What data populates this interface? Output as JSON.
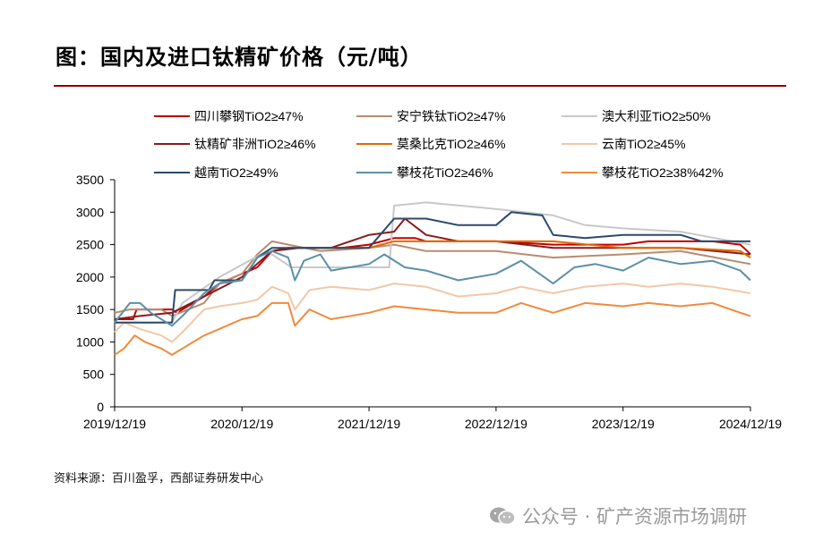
{
  "title": "图：国内及进口钛精矿价格（元/吨）",
  "source": "资料来源：百川盈孚，西部证券研发中心",
  "watermark": "公众号 · 矿产资源市场调研",
  "chart_data": {
    "type": "line",
    "x_ticks": [
      "2019/12/19",
      "2020/12/19",
      "2021/12/19",
      "2022/12/19",
      "2023/12/19",
      "2024/12/19"
    ],
    "xlim": [
      "2019/12/19",
      "2024/12/19"
    ],
    "ylim": [
      0,
      3500
    ],
    "y_ticks": [
      0,
      500,
      1000,
      1500,
      2000,
      2500,
      3000,
      3500
    ],
    "grid": false,
    "legend_position": "top",
    "series": [
      {
        "name": "四川攀钢TiO2≥47%",
        "color": "#c00000",
        "points": [
          [
            "2019-12-19",
            1350
          ],
          [
            "2020-02-10",
            1350
          ],
          [
            "2020-02-20",
            1500
          ],
          [
            "2020-06-01",
            1500
          ],
          [
            "2020-06-15",
            1450
          ],
          [
            "2020-09-01",
            1700
          ],
          [
            "2020-10-15",
            1900
          ],
          [
            "2020-12-19",
            2050
          ],
          [
            "2021-02-01",
            2150
          ],
          [
            "2021-03-15",
            2400
          ],
          [
            "2021-05-01",
            2450
          ],
          [
            "2021-08-01",
            2450
          ],
          [
            "2021-10-01",
            2450
          ],
          [
            "2021-12-19",
            2500
          ],
          [
            "2022-03-01",
            2600
          ],
          [
            "2022-05-01",
            2600
          ],
          [
            "2022-06-01",
            2550
          ],
          [
            "2022-12-19",
            2550
          ],
          [
            "2023-06-01",
            2500
          ],
          [
            "2023-12-19",
            2500
          ],
          [
            "2024-03-01",
            2550
          ],
          [
            "2024-09-01",
            2550
          ],
          [
            "2024-11-20",
            2500
          ],
          [
            "2024-12-10",
            2400
          ],
          [
            "2024-12-19",
            2350
          ]
        ]
      },
      {
        "name": "安宁铁钛TiO2≥47%",
        "color": "#b88c70",
        "points": [
          [
            "2019-12-19",
            1450
          ],
          [
            "2020-02-01",
            1500
          ],
          [
            "2020-05-01",
            1500
          ],
          [
            "2020-06-01",
            1400
          ],
          [
            "2020-09-01",
            1600
          ],
          [
            "2020-10-15",
            1900
          ],
          [
            "2020-12-19",
            2050
          ],
          [
            "2021-02-01",
            2350
          ],
          [
            "2021-03-15",
            2550
          ],
          [
            "2021-05-01",
            2500
          ],
          [
            "2021-08-01",
            2400
          ],
          [
            "2021-12-19",
            2450
          ],
          [
            "2022-03-01",
            2500
          ],
          [
            "2022-06-01",
            2400
          ],
          [
            "2022-12-19",
            2400
          ],
          [
            "2023-06-01",
            2300
          ],
          [
            "2023-12-19",
            2350
          ],
          [
            "2024-06-01",
            2400
          ],
          [
            "2024-12-19",
            2200
          ]
        ]
      },
      {
        "name": "澳大利亚TiO2≥50%",
        "color": "#c8c8c8",
        "points": [
          [
            "2019-12-19",
            1300
          ],
          [
            "2020-06-01",
            1300
          ],
          [
            "2020-07-01",
            1600
          ],
          [
            "2020-10-15",
            2000
          ],
          [
            "2021-03-01",
            2400
          ],
          [
            "2021-05-10",
            2150
          ],
          [
            "2021-07-01",
            2150
          ],
          [
            "2021-12-19",
            2150
          ],
          [
            "2022-02-15",
            2150
          ],
          [
            "2022-03-01",
            3100
          ],
          [
            "2022-06-01",
            3150
          ],
          [
            "2022-12-19",
            3050
          ],
          [
            "2023-06-01",
            2950
          ],
          [
            "2023-09-01",
            2800
          ],
          [
            "2023-12-19",
            2750
          ],
          [
            "2024-06-01",
            2700
          ],
          [
            "2024-12-19",
            2500
          ]
        ]
      },
      {
        "name": "钛精矿非洲TiO2≥46%",
        "color": "#8b1a1a",
        "points": [
          [
            "2019-12-19",
            1350
          ],
          [
            "2020-03-01",
            1400
          ],
          [
            "2020-06-01",
            1450
          ],
          [
            "2020-09-01",
            1700
          ],
          [
            "2020-12-19",
            2000
          ],
          [
            "2021-03-15",
            2400
          ],
          [
            "2021-06-01",
            2450
          ],
          [
            "2021-09-01",
            2450
          ],
          [
            "2021-12-19",
            2650
          ],
          [
            "2022-03-01",
            2700
          ],
          [
            "2022-04-01",
            2900
          ],
          [
            "2022-06-01",
            2650
          ],
          [
            "2022-09-01",
            2550
          ],
          [
            "2022-12-19",
            2550
          ],
          [
            "2023-06-01",
            2450
          ],
          [
            "2023-12-19",
            2450
          ],
          [
            "2024-06-01",
            2450
          ],
          [
            "2024-12-19",
            2350
          ]
        ]
      },
      {
        "name": "莫桑比克TiO2≥46%",
        "color": "#e06b00",
        "points": [
          [
            "2021-08-01",
            2450
          ],
          [
            "2021-12-19",
            2450
          ],
          [
            "2022-03-01",
            2550
          ],
          [
            "2022-12-19",
            2550
          ],
          [
            "2023-06-01",
            2550
          ],
          [
            "2023-12-19",
            2450
          ],
          [
            "2024-06-01",
            2450
          ],
          [
            "2024-11-20",
            2400
          ],
          [
            "2024-12-19",
            2300
          ]
        ]
      },
      {
        "name": "云南TiO2≥45%",
        "color": "#f0c8a8",
        "points": [
          [
            "2019-12-19",
            1150
          ],
          [
            "2020-01-15",
            1300
          ],
          [
            "2020-03-01",
            1200
          ],
          [
            "2020-05-01",
            1100
          ],
          [
            "2020-06-01",
            1000
          ],
          [
            "2020-07-01",
            1150
          ],
          [
            "2020-09-01",
            1500
          ],
          [
            "2020-10-15",
            1550
          ],
          [
            "2020-12-19",
            1600
          ],
          [
            "2021-02-01",
            1650
          ],
          [
            "2021-03-15",
            1850
          ],
          [
            "2021-05-01",
            1750
          ],
          [
            "2021-05-20",
            1500
          ],
          [
            "2021-07-01",
            1800
          ],
          [
            "2021-09-01",
            1850
          ],
          [
            "2021-12-19",
            1800
          ],
          [
            "2022-03-01",
            1900
          ],
          [
            "2022-06-01",
            1850
          ],
          [
            "2022-09-01",
            1700
          ],
          [
            "2022-12-19",
            1750
          ],
          [
            "2023-03-01",
            1850
          ],
          [
            "2023-06-01",
            1750
          ],
          [
            "2023-09-01",
            1850
          ],
          [
            "2023-12-19",
            1900
          ],
          [
            "2024-03-01",
            1850
          ],
          [
            "2024-06-01",
            1900
          ],
          [
            "2024-09-01",
            1850
          ],
          [
            "2024-12-19",
            1750
          ]
        ]
      },
      {
        "name": "越南TiO2≥49%",
        "color": "#2c4a6b",
        "points": [
          [
            "2019-12-19",
            1300
          ],
          [
            "2020-06-01",
            1300
          ],
          [
            "2020-06-10",
            1800
          ],
          [
            "2020-09-15",
            1800
          ],
          [
            "2020-10-01",
            1950
          ],
          [
            "2020-12-19",
            1950
          ],
          [
            "2021-02-01",
            2300
          ],
          [
            "2021-03-15",
            2450
          ],
          [
            "2021-06-01",
            2450
          ],
          [
            "2021-12-19",
            2450
          ],
          [
            "2022-03-01",
            2900
          ],
          [
            "2022-06-01",
            2900
          ],
          [
            "2022-09-01",
            2800
          ],
          [
            "2022-12-19",
            2800
          ],
          [
            "2023-02-01",
            3000
          ],
          [
            "2023-05-01",
            2950
          ],
          [
            "2023-06-01",
            2650
          ],
          [
            "2023-09-01",
            2600
          ],
          [
            "2023-12-19",
            2650
          ],
          [
            "2024-06-01",
            2650
          ],
          [
            "2024-08-01",
            2550
          ],
          [
            "2024-12-19",
            2550
          ]
        ]
      },
      {
        "name": "攀枝花TiO2≥46%",
        "color": "#5b8fa8",
        "points": [
          [
            "2019-12-19",
            1300
          ],
          [
            "2020-02-01",
            1600
          ],
          [
            "2020-03-01",
            1600
          ],
          [
            "2020-04-01",
            1450
          ],
          [
            "2020-06-01",
            1250
          ],
          [
            "2020-07-01",
            1400
          ],
          [
            "2020-09-01",
            1750
          ],
          [
            "2020-10-15",
            1900
          ],
          [
            "2020-12-19",
            1950
          ],
          [
            "2021-02-01",
            2300
          ],
          [
            "2021-03-15",
            2400
          ],
          [
            "2021-05-01",
            2300
          ],
          [
            "2021-05-20",
            1950
          ],
          [
            "2021-06-15",
            2250
          ],
          [
            "2021-08-01",
            2350
          ],
          [
            "2021-09-01",
            2100
          ],
          [
            "2021-12-19",
            2200
          ],
          [
            "2022-02-01",
            2350
          ],
          [
            "2022-04-01",
            2150
          ],
          [
            "2022-06-01",
            2100
          ],
          [
            "2022-09-01",
            1950
          ],
          [
            "2022-12-19",
            2050
          ],
          [
            "2023-03-01",
            2250
          ],
          [
            "2023-06-01",
            1900
          ],
          [
            "2023-08-01",
            2150
          ],
          [
            "2023-10-01",
            2200
          ],
          [
            "2023-12-19",
            2100
          ],
          [
            "2024-03-01",
            2300
          ],
          [
            "2024-06-01",
            2200
          ],
          [
            "2024-09-01",
            2250
          ],
          [
            "2024-11-20",
            2100
          ],
          [
            "2024-12-19",
            1950
          ]
        ]
      },
      {
        "name": "攀枝花TiO2≥38%42%",
        "color": "#f08a3c",
        "points": [
          [
            "2019-12-19",
            800
          ],
          [
            "2020-01-15",
            900
          ],
          [
            "2020-02-15",
            1100
          ],
          [
            "2020-03-15",
            1000
          ],
          [
            "2020-05-01",
            900
          ],
          [
            "2020-06-01",
            800
          ],
          [
            "2020-07-01",
            900
          ],
          [
            "2020-09-01",
            1100
          ],
          [
            "2020-10-15",
            1200
          ],
          [
            "2020-12-19",
            1350
          ],
          [
            "2021-02-01",
            1400
          ],
          [
            "2021-03-15",
            1600
          ],
          [
            "2021-05-01",
            1600
          ],
          [
            "2021-05-20",
            1250
          ],
          [
            "2021-07-01",
            1500
          ],
          [
            "2021-09-01",
            1350
          ],
          [
            "2021-12-19",
            1450
          ],
          [
            "2022-03-01",
            1550
          ],
          [
            "2022-06-01",
            1500
          ],
          [
            "2022-09-01",
            1450
          ],
          [
            "2022-12-19",
            1450
          ],
          [
            "2023-03-01",
            1600
          ],
          [
            "2023-06-01",
            1450
          ],
          [
            "2023-09-01",
            1600
          ],
          [
            "2023-12-19",
            1550
          ],
          [
            "2024-03-01",
            1600
          ],
          [
            "2024-06-01",
            1550
          ],
          [
            "2024-09-01",
            1600
          ],
          [
            "2024-11-20",
            1450
          ],
          [
            "2024-12-19",
            1400
          ]
        ]
      }
    ]
  }
}
